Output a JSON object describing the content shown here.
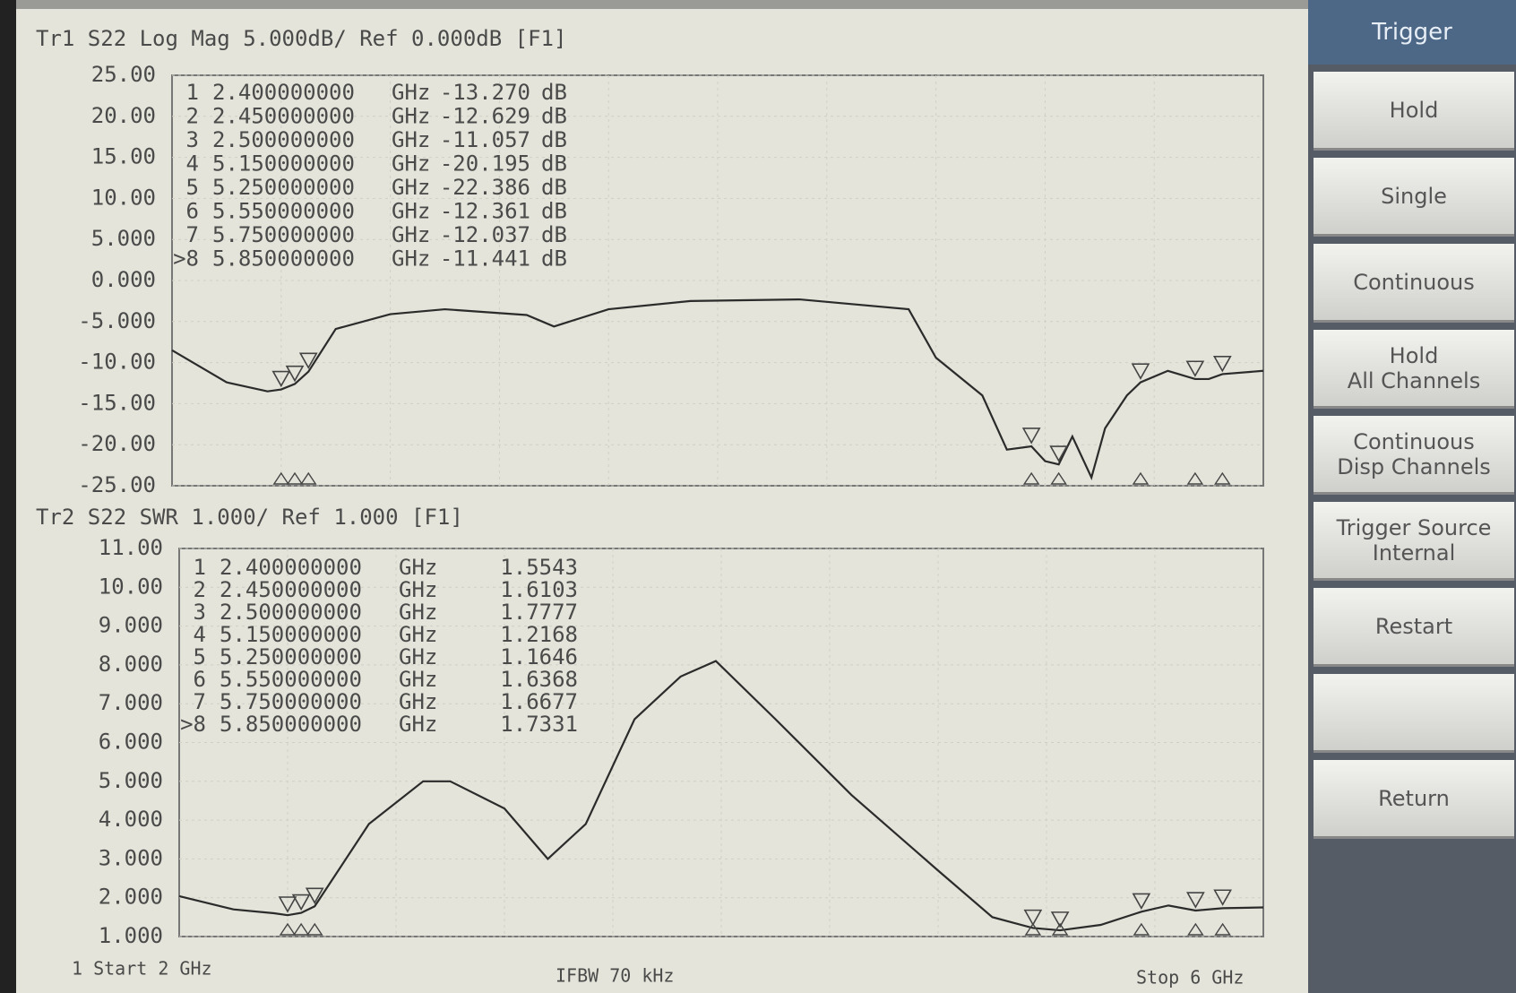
{
  "chart_data": [
    {
      "type": "line",
      "title": "Tr1 S22 Log Mag 5.000dB/ Ref 0.000dB [F1]",
      "color": "#2b2b2b",
      "grid": true,
      "xlim": [
        2,
        6
      ],
      "ylim": [
        -25,
        25
      ],
      "yticks": [
        {
          "value": 25,
          "label": "25.00"
        },
        {
          "value": 20,
          "label": "20.00"
        },
        {
          "value": 15,
          "label": "15.00"
        },
        {
          "value": 10,
          "label": "10.00"
        },
        {
          "value": 5,
          "label": "5.000"
        },
        {
          "value": 0,
          "label": "0.000"
        },
        {
          "value": -5,
          "label": "-5.000"
        },
        {
          "value": -10,
          "label": "-10.00"
        },
        {
          "value": -15,
          "label": "-15.00"
        },
        {
          "value": -20,
          "label": "-20.00"
        },
        {
          "value": -25,
          "label": "-25.00"
        }
      ],
      "x": [
        2.0,
        2.2,
        2.35,
        2.4,
        2.45,
        2.5,
        2.6,
        2.8,
        3.0,
        3.3,
        3.4,
        3.6,
        3.9,
        4.3,
        4.7,
        4.8,
        4.97,
        5.06,
        5.15,
        5.2,
        5.25,
        5.3,
        5.37,
        5.42,
        5.5,
        5.55,
        5.65,
        5.75,
        5.8,
        5.85,
        6.0
      ],
      "values": [
        -8.5,
        -12.4,
        -13.5,
        -13.27,
        -12.6,
        -11.1,
        -5.9,
        -4.1,
        -3.5,
        -4.2,
        -5.6,
        -3.5,
        -2.5,
        -2.3,
        -3.5,
        -9.4,
        -14,
        -20.6,
        -20.2,
        -22,
        -22.4,
        -19,
        -24,
        -18,
        -14,
        -12.4,
        -11,
        -12,
        -12,
        -11.4,
        -11
      ],
      "markers": [
        {
          "id": "1",
          "freq": "2.400000000",
          "funit": "GHz",
          "value": "-13.270",
          "vunit": "dB"
        },
        {
          "id": "2",
          "freq": "2.450000000",
          "funit": "GHz",
          "value": "-12.629",
          "vunit": "dB"
        },
        {
          "id": "3",
          "freq": "2.500000000",
          "funit": "GHz",
          "value": "-11.057",
          "vunit": "dB"
        },
        {
          "id": "4",
          "freq": "5.150000000",
          "funit": "GHz",
          "value": "-20.195",
          "vunit": "dB"
        },
        {
          "id": "5",
          "freq": "5.250000000",
          "funit": "GHz",
          "value": "-22.386",
          "vunit": "dB"
        },
        {
          "id": "6",
          "freq": "5.550000000",
          "funit": "GHz",
          "value": "-12.361",
          "vunit": "dB"
        },
        {
          "id": "7",
          "freq": "5.750000000",
          "funit": "GHz",
          "value": "-12.037",
          "vunit": "dB"
        },
        {
          "id": ">8",
          "freq": "5.850000000",
          "funit": "GHz",
          "value": "-11.441",
          "vunit": "dB"
        }
      ]
    },
    {
      "type": "line",
      "title": "Tr2 S22 SWR 1.000/ Ref 1.000 [F1]",
      "color": "#2b2b2b",
      "grid": true,
      "xlim": [
        2,
        6
      ],
      "ylim": [
        1,
        11
      ],
      "yticks": [
        {
          "value": 11,
          "label": "11.00"
        },
        {
          "value": 10,
          "label": "10.00"
        },
        {
          "value": 9,
          "label": "9.000"
        },
        {
          "value": 8,
          "label": "8.000"
        },
        {
          "value": 7,
          "label": "7.000"
        },
        {
          "value": 6,
          "label": "6.000"
        },
        {
          "value": 5,
          "label": "5.000"
        },
        {
          "value": 4,
          "label": "4.000"
        },
        {
          "value": 3,
          "label": "3.000"
        },
        {
          "value": 2,
          "label": "2.000"
        },
        {
          "value": 1,
          "label": "1.000"
        }
      ],
      "x": [
        2.0,
        2.2,
        2.35,
        2.4,
        2.45,
        2.5,
        2.7,
        2.9,
        3.0,
        3.2,
        3.36,
        3.5,
        3.68,
        3.85,
        3.98,
        4.2,
        4.48,
        4.8,
        5.0,
        5.15,
        5.25,
        5.4,
        5.55,
        5.65,
        5.75,
        5.85,
        6.0
      ],
      "values": [
        2.04,
        1.7,
        1.6,
        1.55,
        1.61,
        1.78,
        3.9,
        5.0,
        5.0,
        4.3,
        3.0,
        3.9,
        6.6,
        7.7,
        8.1,
        6.6,
        4.65,
        2.7,
        1.5,
        1.22,
        1.16,
        1.3,
        1.64,
        1.8,
        1.67,
        1.73,
        1.75
      ],
      "markers": [
        {
          "id": "1",
          "freq": "2.400000000",
          "funit": "GHz",
          "value": "1.5543"
        },
        {
          "id": "2",
          "freq": "2.450000000",
          "funit": "GHz",
          "value": "1.6103"
        },
        {
          "id": "3",
          "freq": "2.500000000",
          "funit": "GHz",
          "value": "1.7777"
        },
        {
          "id": "4",
          "freq": "5.150000000",
          "funit": "GHz",
          "value": "1.2168"
        },
        {
          "id": "5",
          "freq": "5.250000000",
          "funit": "GHz",
          "value": "1.1646"
        },
        {
          "id": "6",
          "freq": "5.550000000",
          "funit": "GHz",
          "value": "1.6368"
        },
        {
          "id": "7",
          "freq": "5.750000000",
          "funit": "GHz",
          "value": "1.6677"
        },
        {
          "id": ">8",
          "freq": "5.850000000",
          "funit": "GHz",
          "value": "1.7331"
        }
      ]
    }
  ],
  "footer": {
    "start": "1  Start 2 GHz",
    "ifbw": "IFBW 70 kHz",
    "stop": "Stop 6 GHz"
  },
  "softkeys": {
    "header": "Trigger",
    "keys": [
      [
        "Hold"
      ],
      [
        "Single"
      ],
      [
        "Continuous"
      ],
      [
        "Hold",
        "All Channels"
      ],
      [
        "Continuous",
        "Disp Channels"
      ],
      [
        "Trigger Source",
        "Internal"
      ],
      [
        "Restart"
      ],
      [],
      [
        "Return"
      ]
    ]
  }
}
